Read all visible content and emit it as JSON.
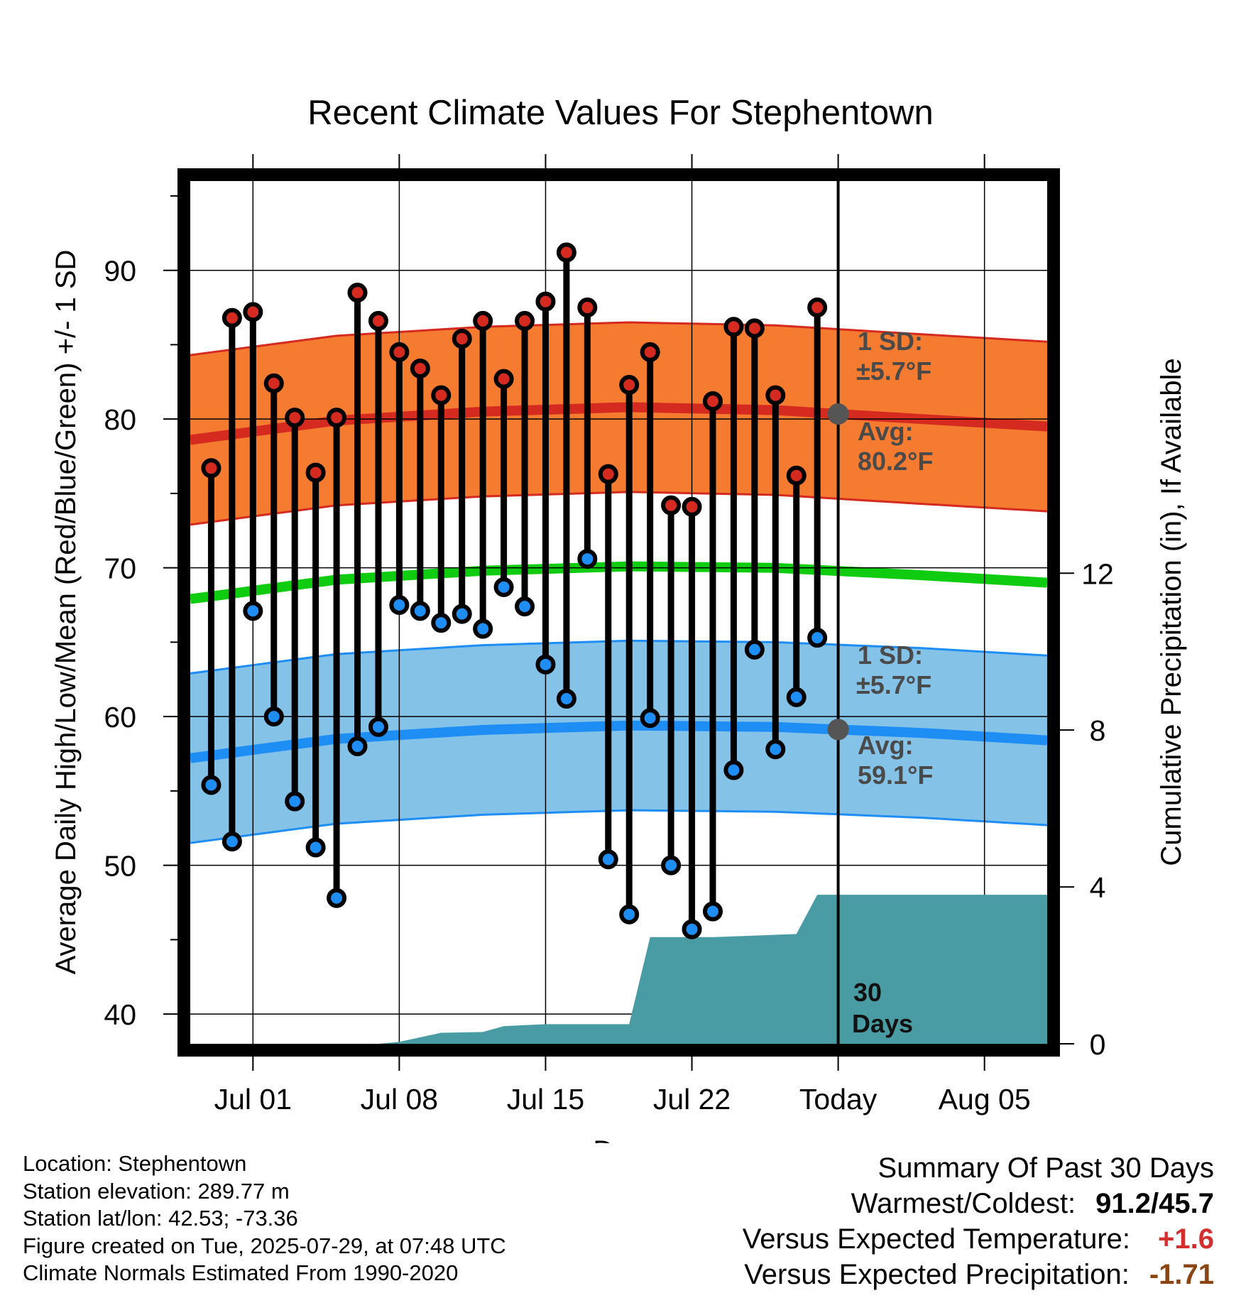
{
  "chart_data": {
    "type": "climate-range",
    "title": "Recent Climate Values For Stephentown",
    "xlabel": "Day",
    "ylabel": "Average Daily High/Low/Mean (Red/Blue/Green) +/- 1 SD",
    "y2label": "Cumulative Precipitation (in), If Available",
    "ylim": [
      38,
      96
    ],
    "y2lim": [
      0,
      22
    ],
    "y_ticks": [
      "40",
      "50",
      "60",
      "70",
      "80",
      "90"
    ],
    "y2_ticks": [
      "0",
      "4",
      "8",
      "12"
    ],
    "x_range": [
      "2025-06-28",
      "2025-08-08"
    ],
    "x_ticks": [
      {
        "date": "2025-07-01",
        "label": "Jul 01"
      },
      {
        "date": "2025-07-08",
        "label": "Jul 08"
      },
      {
        "date": "2025-07-15",
        "label": "Jul 15"
      },
      {
        "date": "2025-07-22",
        "label": "Jul 22"
      },
      {
        "date": "2025-07-29",
        "label": "Today"
      },
      {
        "date": "2025-08-05",
        "label": "Aug 05"
      }
    ],
    "today": "2025-07-29",
    "observations": {
      "dates": [
        "2025-06-29",
        "2025-06-30",
        "2025-07-01",
        "2025-07-02",
        "2025-07-03",
        "2025-07-04",
        "2025-07-05",
        "2025-07-06",
        "2025-07-07",
        "2025-07-08",
        "2025-07-09",
        "2025-07-10",
        "2025-07-11",
        "2025-07-12",
        "2025-07-13",
        "2025-07-14",
        "2025-07-15",
        "2025-07-16",
        "2025-07-17",
        "2025-07-18",
        "2025-07-19",
        "2025-07-20",
        "2025-07-21",
        "2025-07-22",
        "2025-07-23",
        "2025-07-24",
        "2025-07-25",
        "2025-07-26",
        "2025-07-27",
        "2025-07-28"
      ],
      "highs": [
        76.7,
        86.8,
        87.2,
        82.4,
        80.1,
        76.4,
        80.1,
        88.5,
        86.6,
        84.5,
        83.4,
        81.6,
        85.4,
        86.6,
        82.7,
        86.6,
        87.9,
        91.2,
        87.5,
        76.3,
        82.3,
        84.5,
        74.2,
        74.1,
        81.2,
        86.2,
        86.1,
        81.6,
        76.2,
        87.5
      ],
      "lows": [
        55.4,
        51.6,
        67.1,
        60.0,
        54.3,
        51.2,
        47.8,
        58.0,
        59.3,
        67.5,
        67.1,
        66.3,
        66.9,
        65.9,
        68.7,
        67.4,
        63.5,
        61.2,
        70.6,
        50.4,
        46.7,
        59.9,
        50.0,
        45.7,
        46.9,
        56.4,
        64.5,
        57.8,
        61.3,
        65.3
      ]
    },
    "normals": {
      "dates": [
        "2025-06-28",
        "2025-07-05",
        "2025-07-12",
        "2025-07-19",
        "2025-07-26",
        "2025-08-02",
        "2025-08-08"
      ],
      "high_avg": [
        78.6,
        79.9,
        80.5,
        80.8,
        80.6,
        80.0,
        79.5
      ],
      "low_avg": [
        57.2,
        58.5,
        59.1,
        59.4,
        59.3,
        58.9,
        58.4
      ],
      "mean_avg": [
        67.9,
        69.2,
        69.8,
        70.1,
        70.0,
        69.5,
        69.0
      ],
      "sd": 5.7
    },
    "precipitation": {
      "dates": [
        "2025-06-29",
        "2025-07-07",
        "2025-07-08",
        "2025-07-10",
        "2025-07-12",
        "2025-07-13",
        "2025-07-15",
        "2025-07-19",
        "2025-07-20",
        "2025-07-23",
        "2025-07-27",
        "2025-07-28",
        "2025-08-08"
      ],
      "cumulative": [
        0.0,
        0.0,
        0.05,
        0.28,
        0.3,
        0.45,
        0.5,
        0.5,
        2.72,
        2.72,
        2.8,
        3.8,
        3.8
      ]
    },
    "colors": {
      "high_band": "#f47b30",
      "high_line": "#d42a20",
      "low_band": "#84c2e8",
      "low_line": "#1e8ef5",
      "mean_line": "#10cc10",
      "precip": "#4a9ca4",
      "high_marker": "#d42a20",
      "low_marker": "#1e8ef5"
    }
  },
  "annotations": {
    "high_sd": "1 SD:",
    "high_sd_val": "±5.7°F",
    "high_avg": "Avg:",
    "high_avg_val": "80.2°F",
    "low_sd": "1 SD:",
    "low_sd_val": "±5.7°F",
    "low_avg": "Avg:",
    "low_avg_val": "59.1°F",
    "precip_window": "30",
    "precip_window_unit": "Days"
  },
  "footer": {
    "location": "Location: Stephentown",
    "elevation": "Station elevation: 289.77 m",
    "latlon": "Station lat/lon: 42.53; -73.36",
    "created": "Figure created on Tue, 2025-07-29, at 07:48 UTC",
    "normals": "Climate Normals Estimated From 1990-2020"
  },
  "summary": {
    "heading": "Summary Of Past 30 Days",
    "warm_label": "Warmest/Coldest:",
    "warm_value": "91.2/45.7",
    "temp_label": "Versus Expected Temperature:",
    "temp_value": "+1.6",
    "precip_label": "Versus Expected Precipitation:",
    "precip_value": "-1.71"
  }
}
